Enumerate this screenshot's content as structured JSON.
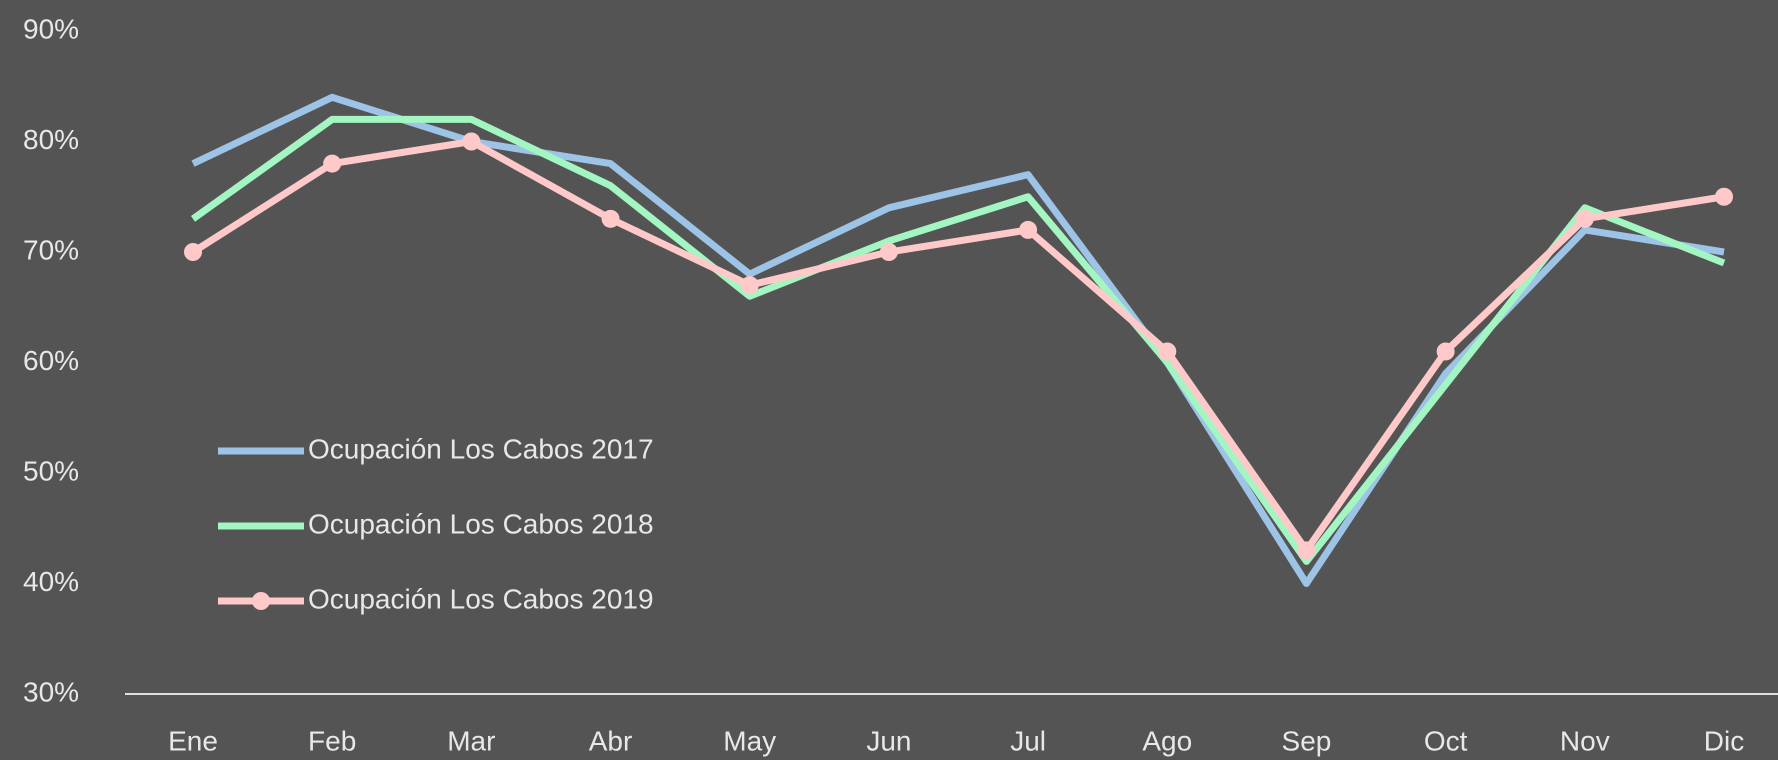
{
  "chart_data": {
    "type": "line",
    "categories": [
      "Ene",
      "Feb",
      "Mar",
      "Abr",
      "May",
      "Jun",
      "Jul",
      "Ago",
      "Sep",
      "Oct",
      "Nov",
      "Dic"
    ],
    "series": [
      {
        "name": "Ocupación Los Cabos 2017",
        "color": "#9dc3e6",
        "markers": false,
        "values": [
          78,
          84,
          80,
          78,
          68,
          74,
          77,
          60,
          40,
          59,
          72,
          70
        ]
      },
      {
        "name": "Ocupación Los Cabos 2018",
        "color": "#a3f5c2",
        "markers": false,
        "values": [
          73,
          82,
          82,
          76,
          66,
          71,
          75,
          60,
          42,
          58,
          74,
          69
        ]
      },
      {
        "name": "Ocupación Los Cabos 2019",
        "color": "#ffc9c9",
        "markers": true,
        "values": [
          70,
          78,
          80,
          73,
          67,
          70,
          72,
          61,
          43,
          61,
          73,
          75
        ]
      }
    ],
    "ylim": [
      30,
      90
    ],
    "yticks": [
      {
        "value": 30,
        "label": "30%"
      },
      {
        "value": 40,
        "label": "40%"
      },
      {
        "value": 50,
        "label": "50%"
      },
      {
        "value": 60,
        "label": "60%"
      },
      {
        "value": 70,
        "label": "70%"
      },
      {
        "value": 80,
        "label": "80%"
      },
      {
        "value": 90,
        "label": "90%"
      }
    ],
    "grid": false,
    "legend": "left"
  }
}
